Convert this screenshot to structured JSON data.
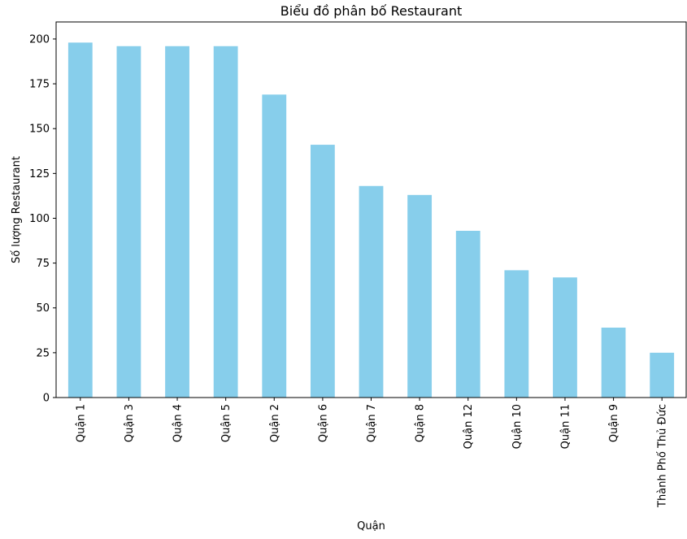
{
  "chart_data": {
    "type": "bar",
    "title": "Biểu đồ phân bố Restaurant",
    "xlabel": "Quận",
    "ylabel": "Số lượng Restaurant",
    "categories": [
      "Quận 1",
      "Quận 3",
      "Quận 4",
      "Quận 5",
      "Quận 2",
      "Quận 6",
      "Quận 7",
      "Quận 8",
      "Quận 12",
      "Quận 10",
      "Quận 11",
      "Quận 9",
      "Thành Phố Thủ Đức"
    ],
    "values": [
      198,
      196,
      196,
      196,
      169,
      141,
      118,
      113,
      93,
      71,
      67,
      39,
      25
    ],
    "ylim": [
      0,
      209.5
    ],
    "yticks": [
      0,
      25,
      50,
      75,
      100,
      125,
      150,
      175,
      200
    ],
    "grid": false,
    "bar_color": "#87CEEB"
  }
}
